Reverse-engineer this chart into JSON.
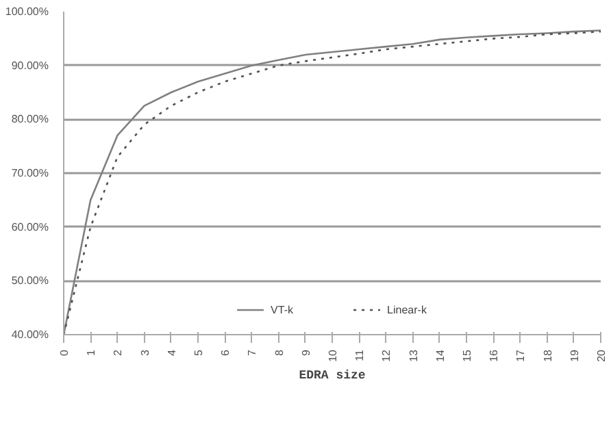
{
  "chart_data": {
    "type": "line",
    "xlabel": "EDRA size",
    "x": [
      0,
      1,
      2,
      3,
      4,
      5,
      6,
      7,
      8,
      9,
      10,
      11,
      12,
      13,
      14,
      15,
      16,
      17,
      18,
      19,
      20
    ],
    "xlim": [
      0,
      20
    ],
    "xticks": [
      0,
      1,
      2,
      3,
      4,
      5,
      6,
      7,
      8,
      9,
      10,
      11,
      12,
      13,
      14,
      15,
      16,
      17,
      18,
      19,
      20
    ],
    "ylim": [
      40,
      100
    ],
    "yticks": [
      {
        "value": 40,
        "label": "40.00%"
      },
      {
        "value": 50,
        "label": "50.00%"
      },
      {
        "value": 60,
        "label": "60.00%"
      },
      {
        "value": 70,
        "label": "70.00%"
      },
      {
        "value": 80,
        "label": "80.00%"
      },
      {
        "value": 90,
        "label": "90.00%"
      },
      {
        "value": 100,
        "label": "100.00%"
      }
    ],
    "grid": "y",
    "legend": "bottom",
    "marker": "none",
    "series": [
      {
        "name": "VT-k",
        "color": "#808080",
        "line_style": "solid",
        "values": [
          40,
          65,
          77,
          82.5,
          85,
          87,
          88.5,
          90,
          91,
          92,
          92.5,
          93,
          93.5,
          94,
          94.8,
          95.2,
          95.5,
          95.8,
          96,
          96.3,
          96.5
        ]
      },
      {
        "name": "Linear-k",
        "color": "#505050",
        "line_style": "dotted",
        "values": [
          40,
          60,
          73,
          79,
          82.5,
          85,
          87,
          88.5,
          90,
          90.8,
          91.5,
          92.2,
          93,
          93.5,
          94,
          94.5,
          95,
          95.3,
          95.8,
          96,
          96.3
        ]
      }
    ]
  }
}
